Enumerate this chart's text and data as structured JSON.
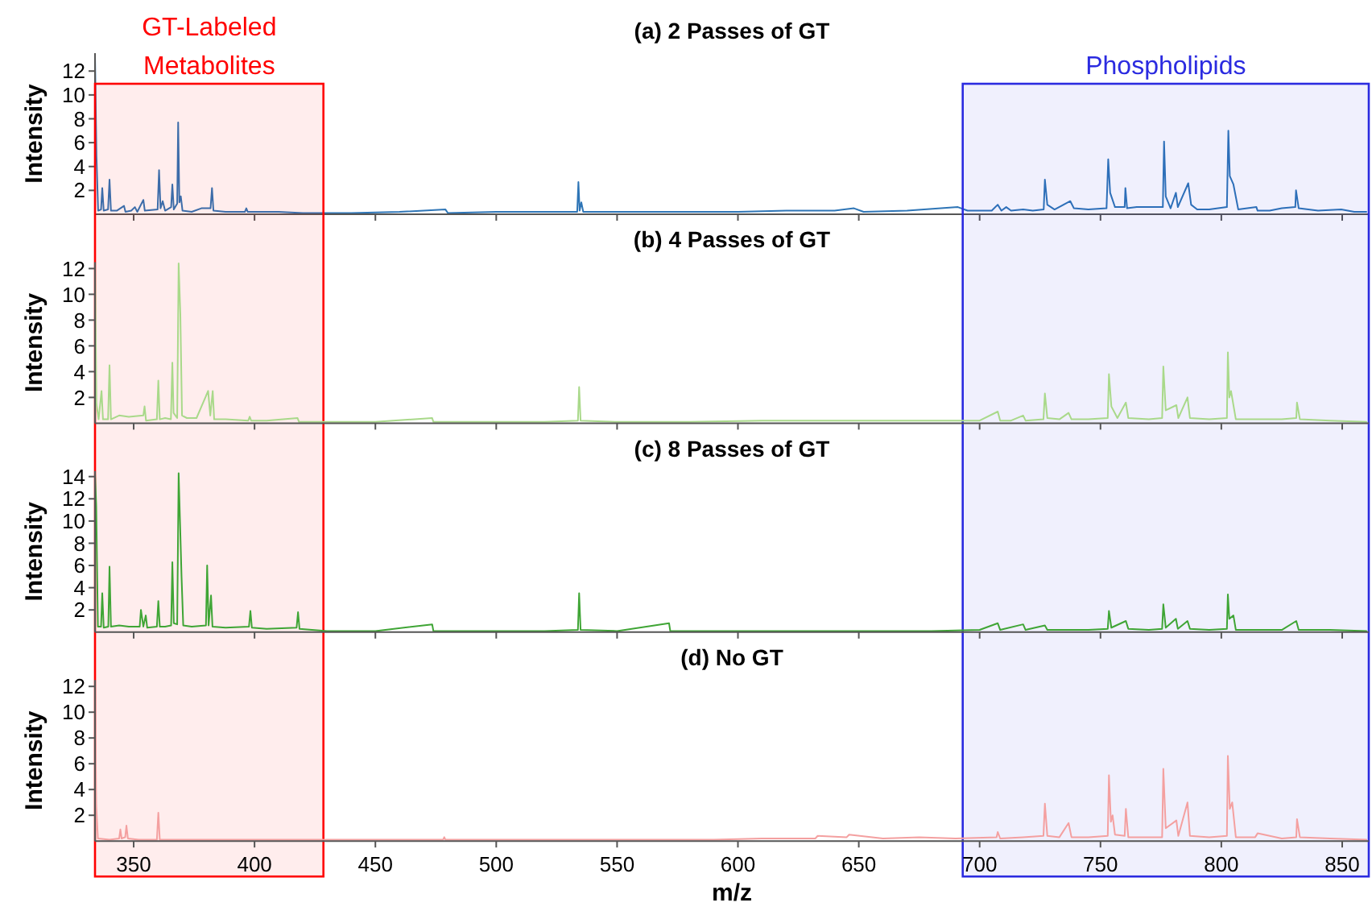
{
  "chart_data": [
    {
      "type": "line",
      "title": "(a) 2 Passes of GT",
      "ylabel": "Intensity",
      "xlim": [
        334,
        861
      ],
      "xticks": [
        350,
        400,
        450,
        500,
        550,
        600,
        650,
        700,
        750,
        800,
        850
      ],
      "ylim": [
        0,
        13.5
      ],
      "yticks": [
        2,
        4,
        6,
        8,
        10,
        12
      ],
      "tick_labels": "y",
      "bands": [
        {
          "axis": "x",
          "from": 334,
          "to": 428.5,
          "label": "GT-Labeled Metabolites",
          "color": "#ff0000"
        },
        {
          "axis": "x",
          "from": 693,
          "to": 861,
          "label": "Phospholipids",
          "color": "#2b2be0"
        }
      ],
      "series": [
        {
          "color": "#2e75b6",
          "x": [
            334,
            334.6,
            335.3,
            336.5,
            337,
            337.6,
            339.4,
            340,
            340.6,
            343,
            346,
            346.6,
            349,
            350.5,
            351.5,
            354,
            354.6,
            359.9,
            360.5,
            361.1,
            362,
            363,
            365.5,
            366,
            366.6,
            368,
            368.4,
            368.9,
            369.5,
            370.2,
            374,
            378,
            381.8,
            382.4,
            383,
            388,
            396,
            396.6,
            397.2,
            410,
            420,
            440,
            460,
            479,
            480,
            500,
            520,
            533.5,
            534,
            534.5,
            535.2,
            536,
            560,
            580,
            600,
            620,
            640,
            648,
            652,
            670,
            691,
            695,
            705,
            707.5,
            709,
            711,
            713,
            718,
            722,
            726.5,
            727,
            728,
            731,
            737.5,
            739,
            745,
            752.5,
            753.2,
            754,
            756,
            760,
            760.3,
            761,
            765,
            770,
            775.8,
            776.3,
            777,
            779,
            781.2,
            782,
            786.3,
            787.5,
            790,
            795,
            802.3,
            802.9,
            803.5,
            805,
            807,
            814.5,
            815,
            820,
            825,
            830.6,
            830.9,
            832,
            840,
            849.6,
            855,
            860
          ],
          "values": [
            13.3,
            4.9,
            0.3,
            0.4,
            2.2,
            0.3,
            0.4,
            2.9,
            0.3,
            0.3,
            0.7,
            0.2,
            0.3,
            0.6,
            0.2,
            1.2,
            0.3,
            0.4,
            3.7,
            0.5,
            1.1,
            0.3,
            0.6,
            2.5,
            0.4,
            0.9,
            7.7,
            1.0,
            1.5,
            0.3,
            0.2,
            0.5,
            0.5,
            2.2,
            0.3,
            0.2,
            0.2,
            0.5,
            0.2,
            0.2,
            0.1,
            0.1,
            0.2,
            0.4,
            0.1,
            0.2,
            0.2,
            0.2,
            2.7,
            0.3,
            1.0,
            0.2,
            0.2,
            0.2,
            0.2,
            0.3,
            0.3,
            0.5,
            0.2,
            0.3,
            0.6,
            0.3,
            0.3,
            0.8,
            0.3,
            0.6,
            0.3,
            0.4,
            0.3,
            0.4,
            2.9,
            0.8,
            0.4,
            1.1,
            0.5,
            0.4,
            0.5,
            4.6,
            1.8,
            0.6,
            0.6,
            2.2,
            0.5,
            0.6,
            0.6,
            0.6,
            6.1,
            1.5,
            0.5,
            1.8,
            0.6,
            2.6,
            0.8,
            0.4,
            0.4,
            0.6,
            7.0,
            3.2,
            2.5,
            0.4,
            0.6,
            0.3,
            0.3,
            0.5,
            0.6,
            2.0,
            0.5,
            0.3,
            0.4,
            0.2,
            0.2
          ]
        }
      ]
    },
    {
      "type": "line",
      "title": "(b) 4 Passes of GT",
      "ylabel": "Intensity",
      "xlim": [
        334,
        861
      ],
      "xticks": [
        350,
        400,
        450,
        500,
        550,
        600,
        650,
        700,
        750,
        800,
        850
      ],
      "ylim": [
        0,
        12.5
      ],
      "yticks": [
        2,
        4,
        6,
        8,
        10,
        12
      ],
      "tick_labels": "y",
      "series": [
        {
          "color": "#a9d98a",
          "x": [
            334,
            334.6,
            335.5,
            336.7,
            337.3,
            339.4,
            340,
            340.6,
            344,
            348,
            354,
            354.5,
            355.1,
            359.6,
            360.2,
            360.8,
            363,
            365.4,
            366,
            366.5,
            368,
            368.6,
            369.3,
            370,
            372,
            376,
            380.8,
            381.7,
            382.7,
            383.3,
            388,
            397.4,
            398,
            398.6,
            405,
            417.8,
            418.4,
            430,
            450,
            473.5,
            474,
            500,
            520,
            533.8,
            534.3,
            534.9,
            550,
            580,
            610,
            640,
            670,
            700,
            707.5,
            708.5,
            713,
            718,
            719,
            726.4,
            727,
            728,
            733,
            736.8,
            738,
            745,
            753,
            753.5,
            754.5,
            757,
            760.5,
            761.5,
            770,
            775.5,
            776,
            777,
            781.4,
            782.2,
            786,
            787,
            795,
            802.3,
            802.7,
            803.3,
            804,
            806,
            815,
            825,
            831,
            831.3,
            832.5,
            845,
            860
          ],
          "values": [
            12.3,
            1.5,
            0.3,
            2.5,
            0.3,
            0.3,
            4.5,
            0.3,
            0.6,
            0.5,
            0.6,
            1.3,
            0.2,
            0.3,
            3.3,
            0.3,
            0.4,
            0.3,
            4.7,
            0.8,
            0.4,
            12.4,
            8.5,
            0.6,
            0.4,
            0.4,
            2.5,
            0.6,
            2.5,
            0.3,
            0.3,
            0.2,
            0.5,
            0.2,
            0.2,
            0.4,
            0.1,
            0.1,
            0.1,
            0.4,
            0.1,
            0.1,
            0.1,
            0.2,
            2.8,
            0.2,
            0.1,
            0.1,
            0.2,
            0.2,
            0.2,
            0.2,
            0.9,
            0.2,
            0.2,
            0.6,
            0.2,
            0.3,
            2.3,
            0.4,
            0.3,
            0.8,
            0.3,
            0.3,
            0.4,
            3.8,
            1.3,
            0.4,
            1.6,
            0.4,
            0.3,
            0.4,
            4.4,
            1.0,
            1.4,
            0.4,
            2.0,
            0.4,
            0.3,
            0.4,
            5.5,
            2.0,
            2.5,
            0.3,
            0.3,
            0.3,
            0.4,
            1.6,
            0.3,
            0.2,
            0.1
          ]
        }
      ]
    },
    {
      "type": "line",
      "title": "(c) 8 Passes of GT",
      "ylabel": "Intensity",
      "xlim": [
        334,
        861
      ],
      "xticks": [
        350,
        400,
        450,
        500,
        550,
        600,
        650,
        700,
        750,
        800,
        850
      ],
      "ylim": [
        0,
        14.5
      ],
      "yticks": [
        2,
        4,
        6,
        8,
        10,
        12,
        14
      ],
      "tick_labels": "y",
      "series": [
        {
          "color": "#3fa535",
          "x": [
            334,
            334.5,
            335.2,
            336.5,
            337,
            337.6,
            339.5,
            340,
            340.6,
            344,
            348,
            352.5,
            353,
            354,
            355,
            355.6,
            359.6,
            360.2,
            360.8,
            363,
            365.5,
            366,
            366.6,
            368,
            368.6,
            369.2,
            369.8,
            370.5,
            374,
            379.9,
            380.4,
            381,
            382,
            382.6,
            388,
            397.7,
            398.3,
            398.9,
            405,
            417.4,
            418,
            418.6,
            430,
            450,
            473.5,
            474,
            500,
            520,
            533.8,
            534.3,
            534.9,
            550,
            571.5,
            572,
            600,
            640,
            680,
            700,
            707.5,
            708.5,
            718,
            719,
            727,
            728,
            745,
            753,
            753.5,
            754.5,
            760.5,
            761.5,
            770,
            775.5,
            776,
            777,
            781.2,
            782,
            786,
            787,
            795,
            802.3,
            802.7,
            803.3,
            805,
            806,
            815,
            825,
            831,
            832,
            845,
            860
          ],
          "values": [
            14.3,
            11.4,
            0.5,
            0.5,
            3.5,
            0.4,
            0.5,
            5.9,
            0.5,
            0.6,
            0.5,
            0.5,
            2.0,
            0.5,
            1.5,
            0.4,
            0.5,
            2.8,
            0.5,
            0.5,
            0.6,
            6.3,
            0.8,
            0.7,
            14.3,
            9.7,
            5.0,
            0.6,
            0.5,
            0.6,
            6.0,
            0.6,
            3.3,
            0.5,
            0.4,
            0.5,
            1.9,
            0.4,
            0.3,
            0.4,
            1.8,
            0.3,
            0.1,
            0.1,
            0.7,
            0.1,
            0.1,
            0.1,
            0.2,
            3.5,
            0.2,
            0.1,
            0.8,
            0.1,
            0.1,
            0.1,
            0.1,
            0.2,
            0.8,
            0.2,
            0.7,
            0.2,
            0.6,
            0.2,
            0.2,
            0.3,
            1.9,
            0.4,
            1.0,
            0.3,
            0.2,
            0.3,
            2.5,
            0.4,
            1.2,
            0.3,
            1.0,
            0.3,
            0.2,
            0.3,
            3.4,
            1.2,
            1.5,
            0.2,
            0.2,
            0.2,
            1.0,
            0.2,
            0.2,
            0.1
          ]
        }
      ]
    },
    {
      "type": "line",
      "title": "(d) No GT",
      "xlabel": "m/z",
      "ylabel": "Intensity",
      "xlim": [
        334,
        861
      ],
      "xticks": [
        350,
        400,
        450,
        500,
        550,
        600,
        650,
        700,
        750,
        800,
        850
      ],
      "ylim": [
        0,
        12.5
      ],
      "yticks": [
        2,
        4,
        6,
        8,
        10,
        12
      ],
      "series": [
        {
          "color": "#f4a0a0",
          "x": [
            334,
            334.5,
            335.2,
            340,
            344,
            344.5,
            345,
            346.5,
            347,
            347.6,
            352,
            359.6,
            360.2,
            360.8,
            370,
            400,
            430,
            460,
            478,
            478.5,
            479,
            500,
            530,
            560,
            590,
            610,
            620,
            632,
            633,
            645,
            646,
            660,
            675,
            690,
            707,
            707.5,
            708.5,
            718,
            726.4,
            727,
            728,
            733,
            736.8,
            738,
            745,
            753,
            753.5,
            754.3,
            755,
            756,
            760,
            760.5,
            761.5,
            770,
            775.5,
            776,
            777,
            781.4,
            782.2,
            786,
            787,
            795,
            802.3,
            802.7,
            803.5,
            804.5,
            806,
            814,
            815,
            825,
            831,
            831.3,
            832.5,
            845,
            860
          ],
          "values": [
            12.4,
            2.8,
            0.2,
            0.1,
            0.2,
            0.9,
            0.2,
            0.3,
            1.2,
            0.2,
            0.1,
            0.1,
            2.2,
            0.1,
            0.1,
            0.1,
            0.1,
            0.1,
            0.1,
            0.3,
            0.1,
            0.1,
            0.1,
            0.1,
            0.1,
            0.2,
            0.2,
            0.2,
            0.4,
            0.3,
            0.5,
            0.2,
            0.3,
            0.2,
            0.3,
            0.7,
            0.2,
            0.3,
            0.4,
            2.9,
            0.4,
            0.3,
            1.4,
            0.3,
            0.3,
            0.4,
            5.1,
            1.5,
            2.0,
            0.5,
            0.4,
            2.5,
            0.3,
            0.3,
            0.3,
            5.6,
            1.0,
            1.6,
            0.4,
            3.0,
            0.4,
            0.3,
            0.4,
            6.6,
            2.5,
            3.0,
            0.3,
            0.3,
            0.6,
            0.2,
            0.3,
            1.7,
            0.3,
            0.2,
            0.1
          ]
        }
      ]
    }
  ]
}
